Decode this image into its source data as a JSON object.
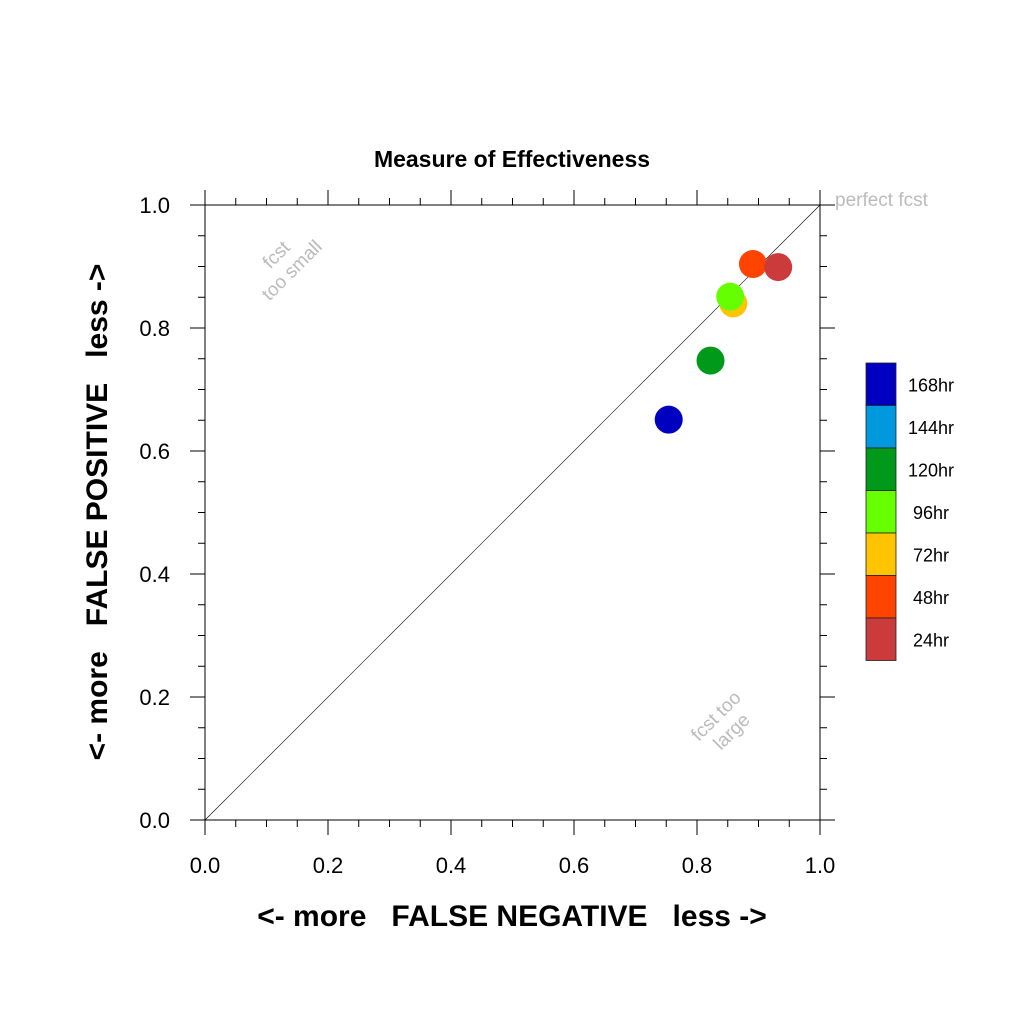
{
  "chart_data": {
    "type": "scatter",
    "title": "Measure of Effectiveness",
    "xlabel": "<- more   FALSE NEGATIVE   less ->",
    "ylabel": "<- more   FALSE POSITIVE   less ->",
    "xlim": [
      0.0,
      1.0
    ],
    "ylim": [
      0.0,
      1.0
    ],
    "xticks": [
      "0.0",
      "0.2",
      "0.4",
      "0.6",
      "0.8",
      "1.0"
    ],
    "yticks": [
      "0.0",
      "0.2",
      "0.4",
      "0.6",
      "0.8",
      "1.0"
    ],
    "grid": false,
    "reference_line": {
      "from": [
        0,
        0
      ],
      "to": [
        1,
        1
      ]
    },
    "annotations": {
      "perfect": "perfect fcst",
      "too_small_1": "fcst",
      "too_small_2": "too small",
      "too_large_1": "fcst too",
      "too_large_2": "large"
    },
    "legend_position": "right",
    "legend": [
      {
        "label": "168hr",
        "color": "#0000c0"
      },
      {
        "label": "144hr",
        "color": "#0099dd"
      },
      {
        "label": "120hr",
        "color": "#00991a"
      },
      {
        "label": "96hr",
        "color": "#66ff00"
      },
      {
        "label": "72hr",
        "color": "#ffc400"
      },
      {
        "label": "48hr",
        "color": "#ff4400"
      },
      {
        "label": "24hr",
        "color": "#cc3b3b"
      }
    ],
    "points": [
      {
        "series": "168hr",
        "x": 0.754,
        "y": 0.651,
        "color": "#0000c0"
      },
      {
        "series": "120hr",
        "x": 0.822,
        "y": 0.747,
        "color": "#00991a"
      },
      {
        "series": "72hr",
        "x": 0.859,
        "y": 0.84,
        "color": "#ffc400"
      },
      {
        "series": "96hr",
        "x": 0.854,
        "y": 0.851,
        "color": "#66ff00"
      },
      {
        "series": "48hr",
        "x": 0.891,
        "y": 0.904,
        "color": "#ff4400"
      },
      {
        "series": "24hr",
        "x": 0.932,
        "y": 0.899,
        "color": "#cc3b3b"
      }
    ]
  }
}
